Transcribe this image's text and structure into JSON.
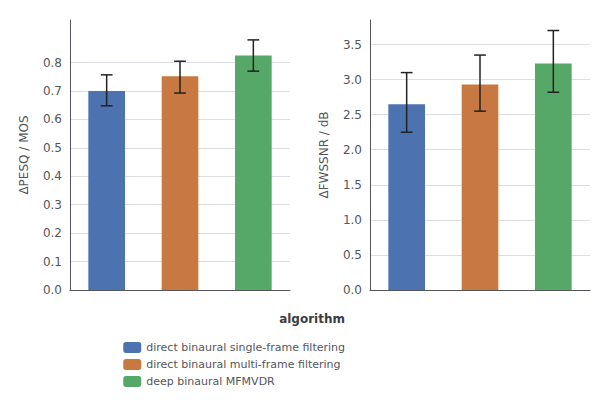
{
  "chart_data": [
    {
      "type": "bar",
      "categories": [
        "direct binaural single-frame filtering",
        "direct binaural multi-frame filtering",
        "deep binaural MFMVDR"
      ],
      "colors": [
        "#4c72b0",
        "#c87941",
        "#55a868"
      ],
      "values": [
        0.7,
        0.752,
        0.825
      ],
      "yerr_low": [
        0.052,
        0.059,
        0.055
      ],
      "yerr_high": [
        0.057,
        0.053,
        0.055
      ],
      "ylabel": "ΔPESQ / MOS",
      "ylim": [
        0.0,
        0.95
      ],
      "yticks": [
        {
          "value": 0,
          "label": "0.0"
        },
        0.1,
        0.2,
        0.3,
        0.4,
        0.5,
        0.6,
        0.7,
        0.8
      ],
      "grid": true,
      "tick_labels": "y",
      "legend": "lower right",
      "legend_title": "algorithm"
    },
    {
      "type": "bar",
      "categories": [
        "direct binaural single-frame filtering",
        "direct binaural multi-frame filtering",
        "deep binaural MFMVDR"
      ],
      "colors": [
        "#4c72b0",
        "#c87941",
        "#55a868"
      ],
      "values": [
        2.65,
        2.93,
        3.23
      ],
      "yerr_low": [
        0.4,
        0.38,
        0.41
      ],
      "yerr_high": [
        0.45,
        0.42,
        0.47
      ],
      "ylabel": "ΔFWSSNR / dB",
      "ylim": [
        0.0,
        3.85
      ],
      "yticks": [
        {
          "value": 0,
          "label": "0.0"
        },
        0.5,
        {
          "value": 1,
          "label": "1.0"
        },
        1.5,
        {
          "value": 2,
          "label": "2.0"
        },
        2.5,
        {
          "value": 3,
          "label": "3.0"
        },
        3.5
      ],
      "grid": true,
      "tick_labels": "y"
    }
  ]
}
